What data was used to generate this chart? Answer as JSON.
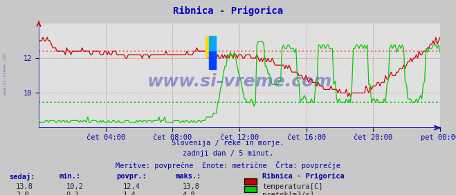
{
  "title": "Ribnica - Prigorica",
  "title_color": "#0000cc",
  "bg_color": "#c8c8c8",
  "plot_bg_color": "#e0e0e0",
  "grid_color": "#cc8888",
  "x_labels": [
    "čet 04:00",
    "čet 08:00",
    "čet 12:00",
    "čet 16:00",
    "čet 20:00",
    "pet 00:00"
  ],
  "ylim_temp": [
    8.0,
    14.0
  ],
  "yticks_temp": [
    10,
    12
  ],
  "ylim_flow": [
    0.0,
    5.8
  ],
  "temp_avg": 12.4,
  "flow_avg": 1.4,
  "temp_color": "#cc0000",
  "flow_color": "#00cc00",
  "avg_color_temp": "#ff6666",
  "avg_color_flow": "#00cc00",
  "axis_color": "#0000cc",
  "tick_color": "#0000aa",
  "watermark": "www.si-vreme.com",
  "watermark_color": "#3333aa",
  "footer_line1": "Slovenija / reke in morje.",
  "footer_line2": "zadnji dan / 5 minut.",
  "footer_line3": "Meritve: povprečne  Enote: metrične  Črta: povprečje",
  "footer_color": "#0000aa",
  "label_color": "#0000aa",
  "stats_headers": [
    "sedaj:",
    "min.:",
    "povpr.:",
    "maks.:"
  ],
  "stats_temp": [
    13.8,
    10.2,
    12.4,
    13.8
  ],
  "stats_flow": [
    2.0,
    0.3,
    1.4,
    4.8
  ],
  "legend_title": "Ribnica - Prigorica",
  "legend_label_temp": "temperatura[C]",
  "legend_label_flow": "pretok[m3/s]",
  "n_points": 288
}
